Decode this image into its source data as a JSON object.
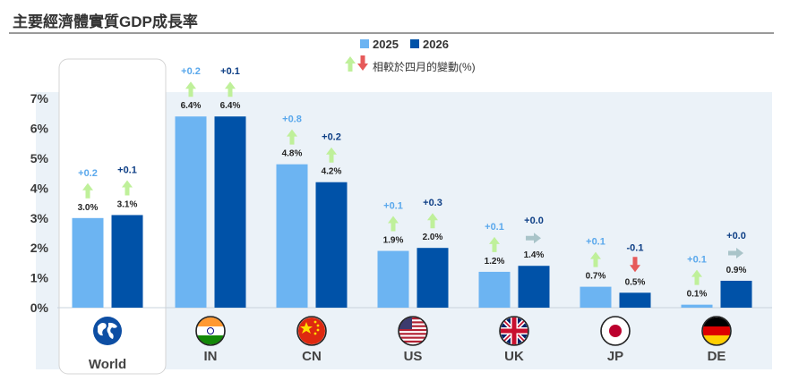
{
  "title": "主要經濟體實質GDP成長率",
  "legend": {
    "series": [
      {
        "name": "2025",
        "color": "#6cb4f2"
      },
      {
        "name": "2026",
        "color": "#0052a8"
      }
    ],
    "change_note": "相較於四月的變動(%)"
  },
  "colors": {
    "series_2025": "#6cb4f2",
    "series_2026": "#0052a8",
    "up_arrow": "#bff09a",
    "down_arrow": "#e65a5a",
    "flat_arrow": "#a9c4c9",
    "plot_bg": "#ebf2f8"
  },
  "chart_data": {
    "type": "bar",
    "title": "主要經濟體實質GDP成長率",
    "categories": [
      "World",
      "IN",
      "CN",
      "US",
      "UK",
      "JP",
      "DE"
    ],
    "category_icons": [
      "globe-icon",
      "india-flag-icon",
      "china-flag-icon",
      "us-flag-icon",
      "uk-flag-icon",
      "japan-flag-icon",
      "germany-flag-icon"
    ],
    "series": [
      {
        "name": "2025",
        "values": [
          3.0,
          6.4,
          4.8,
          1.9,
          1.2,
          0.7,
          0.1
        ],
        "labels": [
          "3.0%",
          "6.4%",
          "4.8%",
          "1.9%",
          "1.2%",
          "0.7%",
          "0.1%"
        ],
        "changes": [
          "+0.2",
          "+0.2",
          "+0.8",
          "+0.1",
          "+0.1",
          "+0.1",
          "+0.1"
        ],
        "change_dir": [
          "up",
          "up",
          "up",
          "up",
          "up",
          "up",
          "up"
        ]
      },
      {
        "name": "2026",
        "values": [
          3.1,
          6.4,
          4.2,
          2.0,
          1.4,
          0.5,
          0.9
        ],
        "labels": [
          "3.1%",
          "6.4%",
          "4.2%",
          "2.0%",
          "1.4%",
          "0.5%",
          "0.9%"
        ],
        "changes": [
          "+0.1",
          "+0.1",
          "+0.2",
          "+0.3",
          "+0.0",
          "-0.1",
          "+0.0"
        ],
        "change_dir": [
          "up",
          "up",
          "up",
          "up",
          "flat",
          "down",
          "flat"
        ]
      }
    ],
    "ylim": [
      0,
      7
    ],
    "yticks": [
      "0%",
      "1%",
      "2%",
      "3%",
      "4%",
      "5%",
      "6%",
      "7%"
    ],
    "xlabel": "",
    "ylabel": "",
    "legend_position": "top-center",
    "grid": false
  }
}
